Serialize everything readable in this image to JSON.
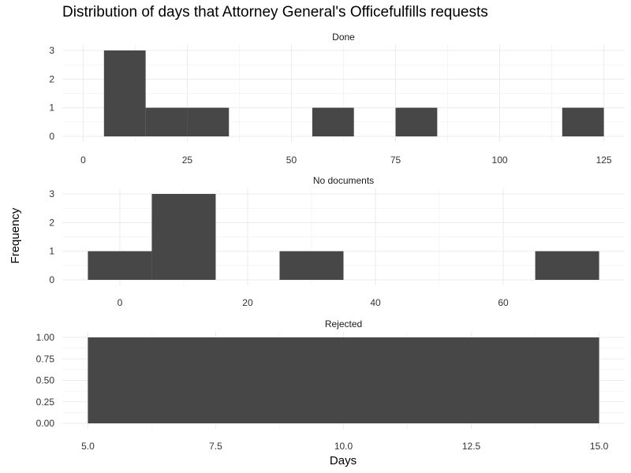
{
  "chart_data": {
    "type": "bar",
    "title": "Distribution of days that Attorney General's Officefulfills requests",
    "xlabel": "Days",
    "ylabel": "Frequency",
    "bar_color": "#474747",
    "grid_color": "#ebebeb",
    "facets": [
      {
        "name": "Done",
        "xlim": [
          -5,
          130
        ],
        "ylim": [
          0,
          3
        ],
        "x_ticks": [
          0,
          25,
          50,
          75,
          100,
          125
        ],
        "x_tick_labels": [
          "0",
          "25",
          "50",
          "75",
          "100",
          "125"
        ],
        "y_ticks": [
          0,
          1,
          2,
          3
        ],
        "y_tick_labels": [
          "0",
          "1",
          "2",
          "3"
        ],
        "bins": [
          {
            "x0": 5,
            "x1": 15,
            "count": 3
          },
          {
            "x0": 15,
            "x1": 25,
            "count": 1
          },
          {
            "x0": 25,
            "x1": 35,
            "count": 1
          },
          {
            "x0": 55,
            "x1": 65,
            "count": 1
          },
          {
            "x0": 75,
            "x1": 85,
            "count": 1
          },
          {
            "x0": 115,
            "x1": 125,
            "count": 1
          }
        ]
      },
      {
        "name": "No documents",
        "xlim": [
          -9,
          79
        ],
        "ylim": [
          0,
          3
        ],
        "x_ticks": [
          0,
          20,
          40,
          60
        ],
        "x_tick_labels": [
          "0",
          "20",
          "40",
          "60"
        ],
        "y_ticks": [
          0,
          1,
          2,
          3
        ],
        "y_tick_labels": [
          "0",
          "1",
          "2",
          "3"
        ],
        "bins": [
          {
            "x0": -5,
            "x1": 5,
            "count": 1
          },
          {
            "x0": 5,
            "x1": 15,
            "count": 3
          },
          {
            "x0": 25,
            "x1": 35,
            "count": 1
          },
          {
            "x0": 65,
            "x1": 75,
            "count": 1
          }
        ]
      },
      {
        "name": "Rejected",
        "xlim": [
          4.5,
          15.5
        ],
        "ylim": [
          0,
          1
        ],
        "x_ticks": [
          5,
          7.5,
          10,
          12.5,
          15
        ],
        "x_tick_labels": [
          "5.0",
          "7.5",
          "10.0",
          "12.5",
          "15.0"
        ],
        "y_ticks": [
          0,
          0.25,
          0.5,
          0.75,
          1
        ],
        "y_tick_labels": [
          "0.00",
          "0.25",
          "0.50",
          "0.75",
          "1.00"
        ],
        "bins": [
          {
            "x0": 5,
            "x1": 15,
            "count": 1
          }
        ]
      }
    ]
  }
}
